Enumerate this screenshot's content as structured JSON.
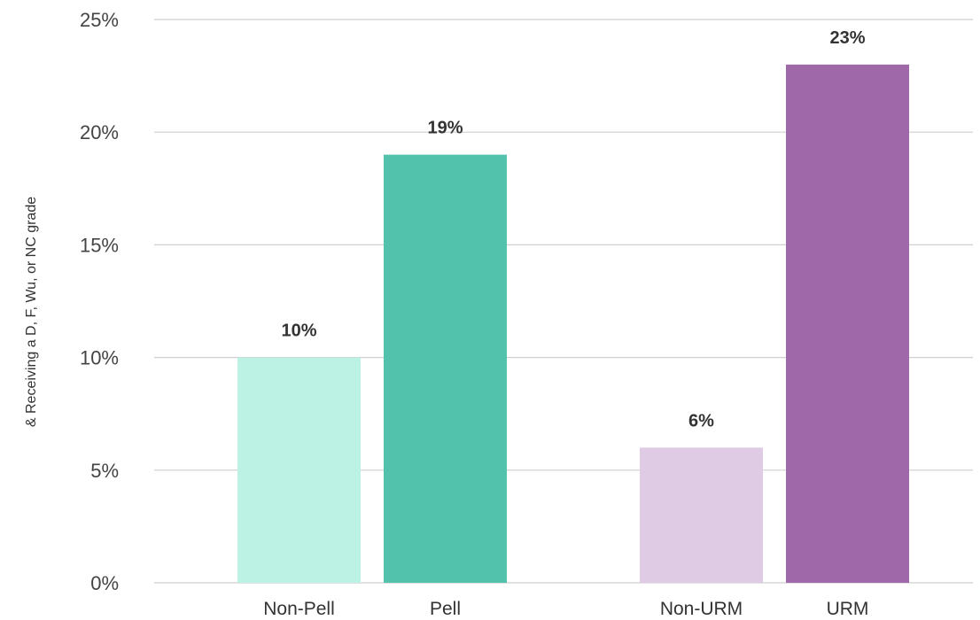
{
  "chart_data": {
    "type": "bar",
    "title": "",
    "xlabel": "",
    "ylabel": "& Receiving a D, F, Wu, or NC grade",
    "ylim": [
      0,
      25
    ],
    "yticks": [
      "0%",
      "5%",
      "10%",
      "15%",
      "20%",
      "25%"
    ],
    "grid": true,
    "categories": [
      "Non-Pell",
      "Pell",
      "Non-URM",
      "URM"
    ],
    "values": [
      10,
      19,
      6,
      23
    ],
    "data_labels": [
      "10%",
      "19%",
      "6%",
      "23%"
    ],
    "colors": [
      "#bbf2e3",
      "#52c2ad",
      "#e0cbe4",
      "#9f68a8"
    ]
  }
}
